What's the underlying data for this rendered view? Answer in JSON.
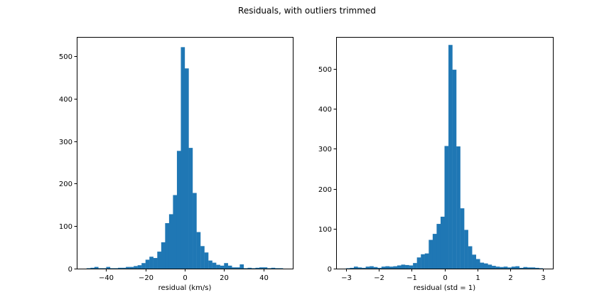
{
  "figure": {
    "suptitle": "Residuals, with outliers trimmed"
  },
  "colors": {
    "bar": "#1f77b4",
    "axes": "#000000",
    "background": "#ffffff"
  },
  "chart_data": [
    {
      "type": "bar",
      "subtype": "histogram",
      "title": "",
      "xlabel": "residual (km/s)",
      "ylabel": "",
      "xlim": [
        -55,
        55
      ],
      "ylim": [
        0,
        545
      ],
      "xticks": [
        -40,
        -20,
        0,
        20,
        40
      ],
      "yticks": [
        0,
        100,
        200,
        300,
        400,
        500
      ],
      "bin_start": -50,
      "bin_width": 2,
      "values": [
        1,
        2,
        4,
        1,
        1,
        4,
        1,
        1,
        2,
        2,
        4,
        4,
        6,
        8,
        13,
        21,
        28,
        25,
        40,
        62,
        107,
        128,
        173,
        277,
        521,
        471,
        284,
        178,
        86,
        53,
        38,
        19,
        14,
        9,
        7,
        13,
        7,
        3,
        3,
        10,
        1,
        2,
        1,
        2,
        3,
        3,
        1,
        2,
        1,
        1
      ],
      "grid": false,
      "legend": "none"
    },
    {
      "type": "bar",
      "subtype": "histogram",
      "title": "",
      "xlabel": "residual (std = 1)",
      "ylabel": "",
      "xlim": [
        -3.3,
        3.3
      ],
      "ylim": [
        0,
        580
      ],
      "xticks": [
        -3,
        -2,
        -1,
        0,
        1,
        2,
        3
      ],
      "yticks": [
        0,
        100,
        200,
        300,
        400,
        500
      ],
      "bin_start": -3.0,
      "bin_width": 0.12,
      "values": [
        1,
        2,
        5,
        3,
        2,
        5,
        6,
        4,
        2,
        5,
        6,
        5,
        6,
        8,
        10,
        9,
        8,
        14,
        28,
        36,
        38,
        72,
        87,
        112,
        130,
        307,
        560,
        498,
        306,
        151,
        97,
        56,
        35,
        24,
        15,
        13,
        10,
        7,
        5,
        4,
        5,
        3,
        5,
        6,
        2,
        4,
        3,
        3,
        2,
        1
      ],
      "grid": false,
      "legend": "none"
    }
  ]
}
